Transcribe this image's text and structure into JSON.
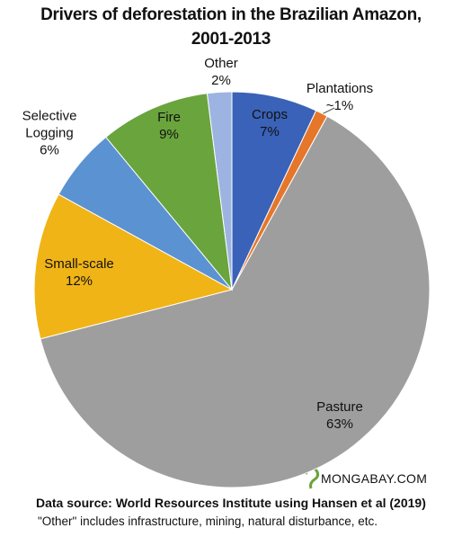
{
  "chart_data": {
    "type": "pie",
    "title": [
      "Drivers of deforestation in the Brazilian Amazon,",
      "2001-2013"
    ],
    "categories": [
      "Crops",
      "Plantations",
      "Pasture",
      "Small-scale",
      "Selective Logging",
      "Fire",
      "Other"
    ],
    "values": [
      7,
      1,
      63,
      12,
      6,
      9,
      2
    ],
    "value_labels": [
      "7%",
      "~1%",
      "63%",
      "12%",
      "6%",
      "9%",
      "2%"
    ],
    "colors": [
      "#3a62b8",
      "#e5762a",
      "#9e9e9e",
      "#f0b416",
      "#5b92d2",
      "#6aa43d",
      "#9db4e2"
    ],
    "source": "Data source: World Resources Institute using Hansen et al  (2019)",
    "note": "\"Other\" includes infrastructure, mining, natural disturbance, etc.",
    "watermark": "MONGABAY.COM"
  }
}
